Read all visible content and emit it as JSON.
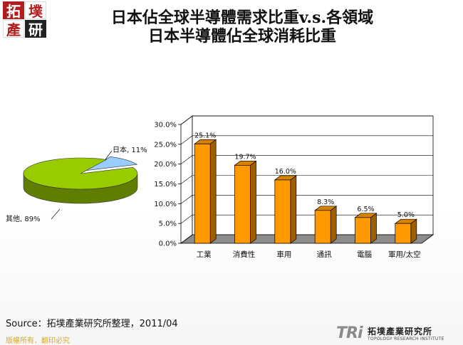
{
  "logo": {
    "chars": [
      "拓",
      "墣",
      "產",
      "研"
    ]
  },
  "title": {
    "line1": "日本佔全球半導體需求比重v.s.各領域",
    "line2": "日本半導體佔全球消耗比重"
  },
  "chart_data": [
    {
      "type": "pie",
      "labels": [
        "日本",
        "其他"
      ],
      "values": [
        11,
        89
      ],
      "data_labels": [
        "日本, 11%",
        "其他, 89%"
      ],
      "colors": [
        "#99ccff",
        "#99cc00"
      ]
    },
    {
      "type": "bar",
      "categories": [
        "工業",
        "消費性",
        "車用",
        "通訊",
        "電腦",
        "軍用/太空"
      ],
      "values": [
        25.1,
        19.7,
        16.0,
        8.3,
        6.5,
        5.0
      ],
      "data_labels": [
        "25.1%",
        "19.7%",
        "16.0%",
        "8.3%",
        "6.5%",
        "5.0%"
      ],
      "y_ticks": [
        "0.0%",
        "5.0%",
        "10.0%",
        "15.0%",
        "20.0%",
        "25.0%",
        "30.0%"
      ],
      "ylim": [
        0,
        30
      ],
      "grid": true,
      "bar_color": "#ff9900"
    }
  ],
  "footer": {
    "source": "Source：拓墣產業研究所整理，2011/04",
    "copyright": "版權所有．翻印必究",
    "brand_mark": "TRi",
    "brand_name": "拓墣產業研究所",
    "brand_sub": "TOPOLOGY RESEARCH INSTITUTE"
  }
}
